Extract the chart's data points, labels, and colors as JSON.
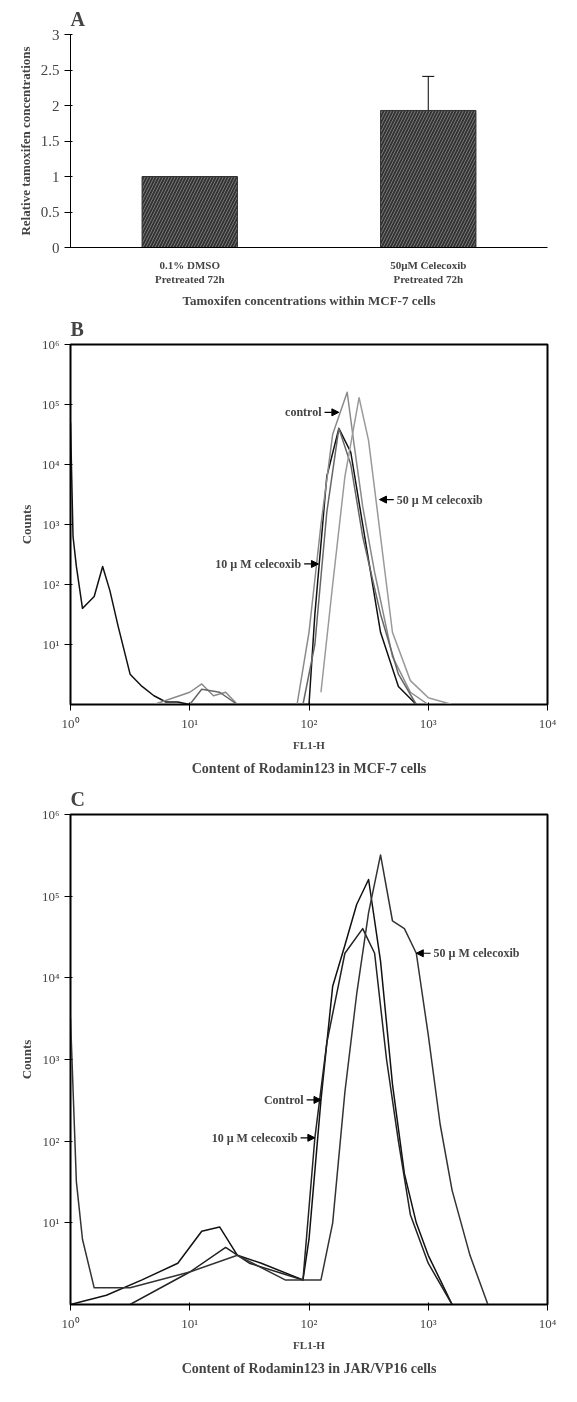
{
  "chart_data": [
    {
      "type": "bar",
      "title": "A",
      "ylabel": "Relative tamoxifen concentrations",
      "xlabel": "Tamoxifen concentrations within MCF-7 cells",
      "categories": [
        "0.1% DMSO\nPretreated 72h",
        "50μM Celecoxib\nPretreated 72h"
      ],
      "values": [
        1,
        1.93
      ],
      "errors": [
        null,
        0.48
      ],
      "color": "#333333",
      "ylim": [
        0,
        3
      ],
      "yticks": [
        0,
        0.5,
        1,
        1.5,
        2,
        2.5,
        3
      ],
      "grid": false
    },
    {
      "type": "line",
      "title": "B",
      "ylabel": "Counts",
      "xlabel": "FL1-H",
      "log": "xy",
      "xlim": [
        1,
        10000
      ],
      "ylim": [
        1,
        1000000
      ],
      "xticks": [
        {
          "value": 1,
          "label": "10⁰"
        },
        {
          "value": 10,
          "label": "10¹"
        },
        {
          "value": 100,
          "label": "10²"
        },
        {
          "value": 1000,
          "label": "10³"
        },
        {
          "value": 10000,
          "label": "10⁴"
        }
      ],
      "yticks": [
        {
          "value": 10,
          "label": "10¹"
        },
        {
          "value": 100,
          "label": "10²"
        },
        {
          "value": 1000,
          "label": "10³"
        },
        {
          "value": 10000,
          "label": "10⁴"
        },
        {
          "value": 100000,
          "label": "10⁵"
        },
        {
          "value": 1000000,
          "label": "10⁶"
        }
      ],
      "grid": false,
      "series": [
        {
          "color": "#111111",
          "x": [
            1,
            1.05,
            1.12,
            1.26,
            1.41,
            1.58,
            1.86,
            2.14,
            2.51,
            3.16,
            3.98,
            5.01,
            6.31,
            7.94,
            10,
            16,
            100,
            112,
            141,
            178,
            224,
            282,
            398,
            562,
            794
          ],
          "values": [
            50000,
            630,
            200,
            40,
            50,
            63,
            200,
            79,
            20,
            3.2,
            2,
            1.4,
            1.1,
            1.1,
            1,
            1,
            1,
            32,
            6300,
            40000,
            16000,
            1000,
            16,
            2,
            1
          ]
        },
        {
          "color": "#8a8a8a",
          "x": [
            5.01,
            10,
            12.6,
            15.8,
            20,
            25.1,
            79.4,
            100,
            126,
            158,
            209,
            240,
            282,
            355,
            501,
            708,
            1000
          ],
          "values": [
            1,
            1.6,
            2.2,
            1.4,
            1.6,
            1,
            1,
            16,
            1000,
            32000,
            160000,
            20000,
            2000,
            160,
            6.3,
            1.6,
            1
          ]
        },
        {
          "color": "#666666",
          "x": [
            10,
            12.6,
            17.8,
            25.1,
            89,
            112,
            141,
            178,
            224,
            282,
            398,
            562,
            794
          ],
          "values": [
            1,
            1.8,
            1.6,
            1,
            1,
            10,
            1600,
            40000,
            10000,
            630,
            32,
            3.2,
            1
          ]
        },
        {
          "color": "#9a9a9a",
          "x": [
            126,
            158,
            200,
            263,
            316,
            398,
            501,
            708,
            1000,
            1585
          ],
          "values": [
            1.6,
            100,
            6300,
            130000,
            25000,
            630,
            16,
            2.5,
            1.3,
            1
          ]
        }
      ],
      "annotations": [
        {
          "text": "control",
          "x": 178,
          "y": 74000
        },
        {
          "text": "50 µ M celecoxib",
          "x": 390,
          "y": 2600
        },
        {
          "text": "10 µ M celecoxib",
          "x": 120,
          "y": 220
        },
        "Content of Rodamin123 in MCF-7 cells"
      ]
    },
    {
      "type": "line",
      "title": "C",
      "ylabel": "Counts",
      "xlabel": "FL1-H",
      "log": "xy",
      "xlim": [
        1,
        10000
      ],
      "ylim": [
        1,
        1000000
      ],
      "xticks": [
        {
          "value": 1,
          "label": "10⁰"
        },
        {
          "value": 10,
          "label": "10¹"
        },
        {
          "value": 100,
          "label": "10²"
        },
        {
          "value": 1000,
          "label": "10³"
        },
        {
          "value": 10000,
          "label": "10⁴"
        }
      ],
      "yticks": [
        {
          "value": 10,
          "label": "10¹"
        },
        {
          "value": 100,
          "label": "10²"
        },
        {
          "value": 1000,
          "label": "10³"
        },
        {
          "value": 10000,
          "label": "10⁴"
        },
        {
          "value": 100000,
          "label": "10⁵"
        },
        {
          "value": 1000000,
          "label": "10⁶"
        }
      ],
      "grid": false,
      "series": [
        {
          "color": "#111111",
          "x": [
            1,
            2,
            3.98,
            7.94,
            12.6,
            17.8,
            25.1,
            39.8,
            89,
            100,
            126,
            158,
            200,
            251,
            316,
            398,
            501,
            631,
            794,
            1000,
            1259,
            1585
          ],
          "values": [
            1,
            1.3,
            2,
            3.2,
            7.9,
            8.9,
            4,
            3.2,
            2,
            6.3,
            320,
            7900,
            25000,
            79000,
            160000,
            16000,
            500,
            40,
            10,
            4,
            2,
            1
          ]
        },
        {
          "color": "#222222",
          "x": [
            3.16,
            10,
            20,
            31.6,
            89,
            112,
            141,
            200,
            282,
            355,
            447,
            562,
            708,
            1000,
            1585
          ],
          "values": [
            1,
            2.5,
            5,
            3.2,
            2,
            110,
            1600,
            20000,
            40000,
            20000,
            1000,
            100,
            12.6,
            3.2,
            1
          ]
        },
        {
          "color": "#333333",
          "x": [
            1,
            1.12,
            1.26,
            1.58,
            3.16,
            10,
            25.1,
            63.1,
            126,
            158,
            200,
            251,
            316,
            398,
            501,
            631,
            794,
            1000,
            1259,
            1585,
            2239,
            3162
          ],
          "values": [
            3200,
            32,
            6.3,
            1.6,
            1.6,
            2.5,
            4,
            2,
            2,
            10,
            400,
            6300,
            63000,
            320000,
            50000,
            40000,
            20000,
            2000,
            160,
            25,
            4,
            1
          ]
        }
      ],
      "annotations": [
        {
          "text": "Control",
          "x": 126,
          "y": 320
        },
        {
          "text": "10 µ M celecoxib",
          "x": 112,
          "y": 110
        },
        {
          "text": "50 µ M celecoxib",
          "x": 794,
          "y": 20000
        },
        "Content of Rodamin123 in JAR/VP16 cells"
      ]
    }
  ]
}
